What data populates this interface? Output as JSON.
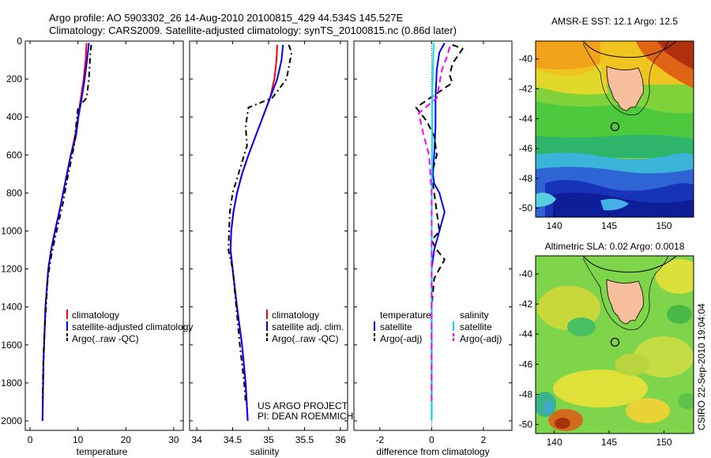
{
  "header": {
    "line1": "Argo profile: AO 5903302_26 14-Aug-2010 20100815_429 44.534S 145.527E",
    "line2": "Climatology: CARS2009. Satellite-adjusted climatology: synTS_20100815.nc (0.86d later)"
  },
  "chart_data": [
    {
      "type": "line",
      "name": "temperature-profile",
      "xlabel": "temperature",
      "ylabel": "",
      "xlim": [
        -1,
        32
      ],
      "ylim": [
        2050,
        0
      ],
      "xticks": [
        0,
        10,
        20,
        30
      ],
      "yticks": [
        0,
        200,
        400,
        600,
        800,
        1000,
        1200,
        1400,
        1600,
        1800,
        2000
      ],
      "legend": [
        "climatology",
        "satellite-adjusted climatology",
        "Argo(..raw -QC)"
      ],
      "series": [
        {
          "name": "climatology",
          "color": "#ff0000",
          "dash": "",
          "x": [
            11.8,
            11.6,
            11.2,
            10.6,
            10.0,
            9.4,
            8.5,
            7.7,
            6.9,
            6.1,
            5.2,
            4.4,
            3.8,
            3.2,
            2.8,
            2.6
          ],
          "y": [
            10,
            100,
            200,
            300,
            400,
            500,
            600,
            700,
            800,
            900,
            1000,
            1100,
            1200,
            1400,
            1700,
            2000
          ]
        },
        {
          "name": "satellite-adjusted climatology",
          "color": "#0000ff",
          "dash": "",
          "x": [
            12.3,
            11.9,
            11.4,
            10.8,
            10.1,
            9.6,
            8.5,
            7.7,
            6.9,
            6.1,
            5.2,
            4.4,
            3.8,
            3.2,
            2.8,
            2.6
          ],
          "y": [
            10,
            100,
            200,
            300,
            400,
            500,
            600,
            700,
            800,
            900,
            1000,
            1100,
            1200,
            1400,
            1700,
            2000
          ]
        },
        {
          "name": "Argo(..raw -QC)",
          "color": "#000000",
          "dash": "7,4,2,4",
          "x": [
            12.8,
            12.6,
            12.3,
            11.8,
            10.0,
            9.6,
            9.2,
            8.4,
            7.6,
            6.9,
            6.0,
            5.1,
            4.3,
            3.7,
            3.2,
            2.8,
            2.6
          ],
          "y": [
            20,
            60,
            200,
            300,
            350,
            450,
            550,
            650,
            750,
            850,
            950,
            1050,
            1150,
            1250,
            1450,
            1650,
            1880
          ]
        }
      ]
    },
    {
      "type": "line",
      "name": "salinity-profile",
      "xlabel": "salinity",
      "ylabel": "",
      "xlim": [
        33.9,
        36.1
      ],
      "ylim": [
        2050,
        0
      ],
      "xticks": [
        34,
        34.5,
        35,
        35.5,
        36
      ],
      "xticklabels": [
        "34",
        "34.5",
        "35",
        "35.5",
        "36"
      ],
      "legend": [
        "climatology",
        "satellite adj. clim.",
        "Argo(..raw -QC)"
      ],
      "annotation": [
        "US ARGO PROJECT",
        "PI: DEAN ROEMMICH"
      ],
      "series": [
        {
          "name": "climatology",
          "color": "#ff0000",
          "dash": "",
          "x": [
            35.12,
            35.11,
            35.08,
            35.02,
            34.92,
            34.82,
            34.72,
            34.63,
            34.56,
            34.51,
            34.48,
            34.47,
            34.5,
            34.56,
            34.63,
            34.68,
            34.71
          ],
          "y": [
            20,
            100,
            200,
            300,
            400,
            500,
            600,
            700,
            800,
            900,
            1000,
            1100,
            1200,
            1400,
            1600,
            1800,
            2000
          ]
        },
        {
          "name": "satellite adj. clim.",
          "color": "#0000ff",
          "dash": "",
          "x": [
            35.2,
            35.18,
            35.12,
            35.02,
            34.92,
            34.82,
            34.72,
            34.63,
            34.56,
            34.51,
            34.48,
            34.47,
            34.5,
            34.56,
            34.63,
            34.68,
            34.71
          ],
          "y": [
            20,
            100,
            200,
            300,
            400,
            500,
            600,
            700,
            800,
            900,
            1000,
            1100,
            1200,
            1400,
            1600,
            1800,
            2000
          ]
        },
        {
          "name": "Argo(..raw -QC)",
          "color": "#000000",
          "dash": "7,4,2,4",
          "x": [
            35.28,
            35.32,
            35.25,
            35.05,
            34.72,
            34.68,
            34.7,
            34.58,
            34.5,
            34.46,
            34.45,
            34.44,
            34.5,
            34.55,
            34.6,
            34.66,
            34.68
          ],
          "y": [
            20,
            60,
            200,
            300,
            350,
            450,
            550,
            700,
            800,
            900,
            1000,
            1100,
            1200,
            1400,
            1600,
            1800,
            1900
          ]
        }
      ]
    },
    {
      "type": "line",
      "name": "difference-profile",
      "xlabel": "difference from climatology",
      "ylabel": "",
      "xlim": [
        -3,
        3.1
      ],
      "ylim": [
        2050,
        0
      ],
      "xticks": [
        -2,
        0,
        2
      ],
      "legend_groups": [
        {
          "title": "temperature",
          "entries": [
            "satellite",
            "Argo(-adj)"
          ]
        },
        {
          "title": "salinity",
          "entries": [
            "satellite",
            "Argo(-adj)"
          ]
        }
      ],
      "series": [
        {
          "name": "temperature satellite",
          "color": "#0000ff",
          "dash": "",
          "x": [
            0.5,
            0.3,
            0.2,
            0.15,
            0.15,
            0.1,
            0.05,
            0.1,
            0.3,
            0.5,
            0.3,
            0.1,
            0.0,
            0.0,
            0.0
          ],
          "y": [
            10,
            60,
            150,
            300,
            450,
            600,
            700,
            750,
            800,
            900,
            1000,
            1100,
            1200,
            1500,
            2000
          ]
        },
        {
          "name": "temperature Argo(-adj)",
          "color": "#000000",
          "dash": "8,5",
          "x": [
            0.8,
            1.2,
            1.0,
            0.8,
            0.7,
            0.8,
            -0.6,
            -0.2,
            0.1,
            0.2,
            0.0,
            0.1,
            0.3,
            0.0,
            0.2,
            0.5,
            0.1,
            0.0,
            0.0,
            0.0
          ],
          "y": [
            20,
            40,
            80,
            120,
            180,
            220,
            350,
            420,
            500,
            600,
            700,
            800,
            1000,
            1050,
            1100,
            1150,
            1250,
            1400,
            1700,
            1880
          ]
        },
        {
          "name": "salinity satellite",
          "color": "#00e5ee",
          "dash": "",
          "x": [
            0.08,
            0.06,
            0.04,
            0.02,
            0.02,
            0.01,
            0.0,
            0.0,
            0.0,
            0.0,
            0.0
          ],
          "y": [
            10,
            100,
            200,
            300,
            500,
            700,
            900,
            1100,
            1400,
            1700,
            2000
          ]
        },
        {
          "name": "salinity Argo(-adj)",
          "color": "#ff00ff",
          "dash": "8,5",
          "x": [
            0.7,
            0.6,
            0.4,
            0.2,
            -0.5,
            -0.3,
            -0.1,
            0.0,
            0.0,
            0.0,
            0.0,
            0.0,
            0.0
          ],
          "y": [
            30,
            80,
            150,
            300,
            380,
            500,
            600,
            800,
            1000,
            1200,
            1400,
            1700,
            1900
          ]
        }
      ]
    },
    {
      "type": "heatmap",
      "name": "sst-map",
      "title": "AMSR-E SST: 12.1 Argo: 12.5",
      "xlim": [
        138.3,
        152.7
      ],
      "ylim": [
        -50.6,
        -38.8
      ],
      "xticks": [
        140,
        145,
        150
      ],
      "yticks": [
        -40,
        -42,
        -44,
        -46,
        -48,
        -50
      ],
      "marker": {
        "lon": 145.527,
        "lat": -44.534
      }
    },
    {
      "type": "heatmap",
      "name": "sla-map",
      "title": "Altimetric SLA: 0.02 Argo: 0.0018",
      "xlim": [
        138.3,
        152.7
      ],
      "ylim": [
        -50.6,
        -38.8
      ],
      "xticks": [
        140,
        145,
        150
      ],
      "yticks": [
        -40,
        -42,
        -44,
        -46,
        -48,
        -50
      ],
      "marker": {
        "lon": 145.527,
        "lat": -44.534
      }
    }
  ],
  "stamp": "CSIRO 22-Sep-2010 19:04:04"
}
